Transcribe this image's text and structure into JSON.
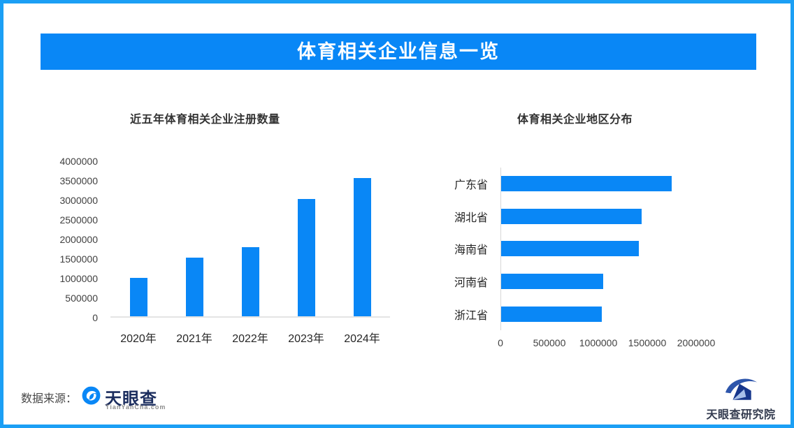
{
  "banner": {
    "title": "体育相关企业信息一览",
    "bg_color": "#0987f6",
    "text_color": "#ffffff"
  },
  "page": {
    "border_color": "#1b9ff5",
    "background_color": "#ffffff"
  },
  "accent_color": "#0987f6",
  "chart_data": [
    {
      "type": "bar",
      "orientation": "vertical",
      "title": "近五年体育相关企业注册数量",
      "categories": [
        "2020年",
        "2021年",
        "2022年",
        "2023年",
        "2024年"
      ],
      "values": [
        1000000,
        1510000,
        1780000,
        3030000,
        3560000
      ],
      "ylabel": "",
      "xlabel": "",
      "ylim": [
        0,
        4000000
      ],
      "ytick_step": 500000,
      "grid": false,
      "legend": "none",
      "bar_color": "#0987f6"
    },
    {
      "type": "bar",
      "orientation": "horizontal",
      "title": "体育相关企业地区分布",
      "categories": [
        "广东省",
        "湖北省",
        "海南省",
        "河南省",
        "浙江省"
      ],
      "values": [
        1750000,
        1440000,
        1410000,
        1050000,
        1030000
      ],
      "ylabel": "",
      "xlabel": "",
      "xlim": [
        0,
        2000000
      ],
      "xtick_step": 500000,
      "grid": false,
      "legend": "none",
      "bar_color": "#0987f6"
    }
  ],
  "footer": {
    "source_label": "数据来源：",
    "tianyancha": {
      "name": "天眼查",
      "domain": "TianYanCha.com"
    },
    "institute": {
      "name": "天眼查研究院"
    }
  }
}
